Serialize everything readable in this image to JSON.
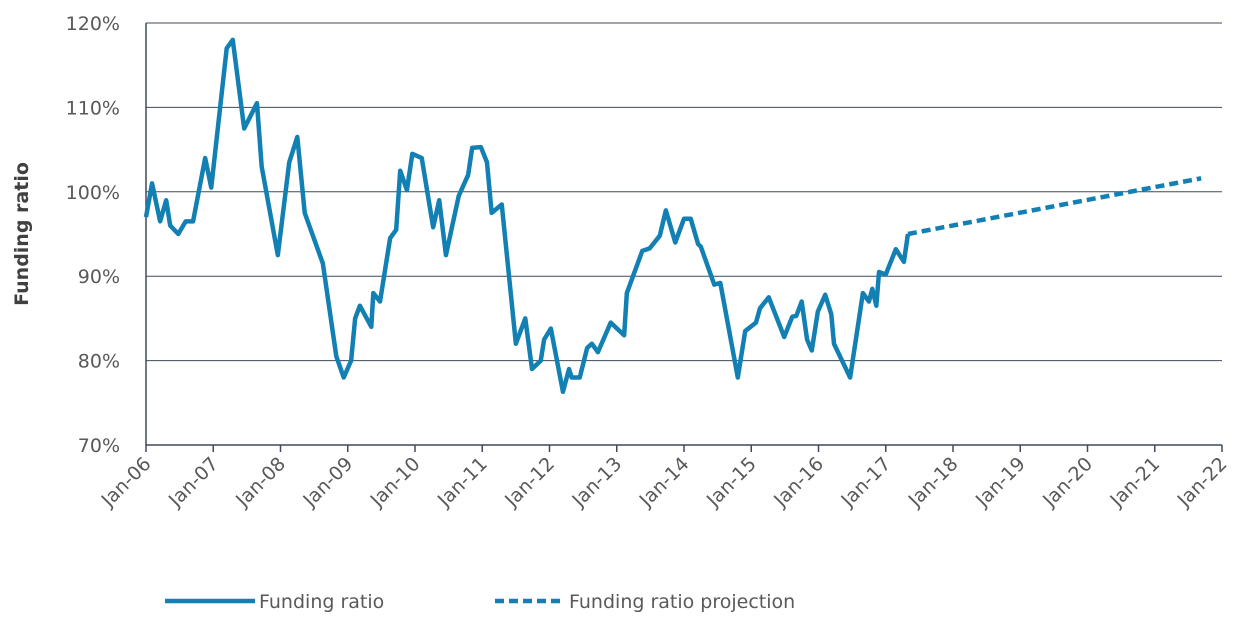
{
  "chart_data": {
    "type": "line",
    "y_label": "Funding ratio",
    "xlim": [
      2006,
      2022
    ],
    "ylim": [
      70,
      120
    ],
    "xticks": [
      {
        "value": 2006,
        "label": "Jan-06"
      },
      {
        "value": 2007,
        "label": "Jan-07"
      },
      {
        "value": 2008,
        "label": "Jan-08"
      },
      {
        "value": 2009,
        "label": "Jan-09"
      },
      {
        "value": 2010,
        "label": "Jan-10"
      },
      {
        "value": 2011,
        "label": "Jan-11"
      },
      {
        "value": 2012,
        "label": "Jan-12"
      },
      {
        "value": 2013,
        "label": "Jan-13"
      },
      {
        "value": 2014,
        "label": "Jan-14"
      },
      {
        "value": 2015,
        "label": "Jan-15"
      },
      {
        "value": 2016,
        "label": "Jan-16"
      },
      {
        "value": 2017,
        "label": "Jan-17"
      },
      {
        "value": 2018,
        "label": "Jan-18"
      },
      {
        "value": 2019,
        "label": "Jan-19"
      },
      {
        "value": 2020,
        "label": "Jan-20"
      },
      {
        "value": 2021,
        "label": "Jan-21"
      },
      {
        "value": 2022,
        "label": "Jan-22"
      }
    ],
    "yticks": [
      {
        "value": 70,
        "label": "70%"
      },
      {
        "value": 80,
        "label": "80%"
      },
      {
        "value": 90,
        "label": "90%"
      },
      {
        "value": 100,
        "label": "100%"
      },
      {
        "value": 110,
        "label": "110%"
      },
      {
        "value": 120,
        "label": "120%"
      }
    ],
    "grid": true,
    "legend": "bottom",
    "series": [
      {
        "name": "Funding ratio",
        "color": "#1380b4",
        "dashed": false,
        "x": [
          2006.0,
          2006.09,
          2006.21,
          2006.3,
          2006.36,
          2006.48,
          2006.59,
          2006.7,
          2006.88,
          2006.97,
          2007.2,
          2007.29,
          2007.46,
          2007.65,
          2007.72,
          2007.96,
          2008.13,
          2008.25,
          2008.36,
          2008.63,
          2008.83,
          2008.94,
          2009.05,
          2009.11,
          2009.18,
          2009.35,
          2009.38,
          2009.48,
          2009.63,
          2009.72,
          2009.78,
          2009.88,
          2009.96,
          2010.1,
          2010.27,
          2010.36,
          2010.46,
          2010.65,
          2010.79,
          2010.85,
          2010.98,
          2011.07,
          2011.14,
          2011.29,
          2011.5,
          2011.64,
          2011.74,
          2011.87,
          2011.92,
          2012.02,
          2012.2,
          2012.29,
          2012.33,
          2012.45,
          2012.56,
          2012.63,
          2012.72,
          2012.91,
          2013.11,
          2013.15,
          2013.38,
          2013.49,
          2013.64,
          2013.73,
          2013.87,
          2014.0,
          2014.1,
          2014.21,
          2014.25,
          2014.45,
          2014.54,
          2014.8,
          2014.91,
          2015.07,
          2015.13,
          2015.26,
          2015.49,
          2015.61,
          2015.67,
          2015.75,
          2015.83,
          2015.9,
          2015.99,
          2016.1,
          2016.19,
          2016.23,
          2016.47,
          2016.66,
          2016.75,
          2016.8,
          2016.86,
          2016.9,
          2017.0,
          2017.15,
          2017.27,
          2017.33
        ],
        "values": [
          97,
          101,
          96.5,
          99,
          96,
          95,
          96.5,
          96.5,
          104,
          100.5,
          117,
          118,
          107.5,
          110.5,
          103,
          92.5,
          103.5,
          106.5,
          97.5,
          91.5,
          80.5,
          78,
          80,
          85,
          86.5,
          84,
          88,
          87,
          94.5,
          95.5,
          102.5,
          100.2,
          104.5,
          104,
          95.8,
          99,
          92.5,
          99.5,
          102,
          105.2,
          105.3,
          103.5,
          97.5,
          98.5,
          82,
          85,
          79,
          80,
          82.5,
          83.8,
          76.3,
          79,
          78,
          78,
          81.5,
          82,
          81,
          84.5,
          83,
          88,
          93,
          93.3,
          94.8,
          97.8,
          94,
          96.8,
          96.8,
          93.8,
          93.5,
          89,
          89.2,
          78,
          83.5,
          84.5,
          86.2,
          87.5,
          82.8,
          85.2,
          85.3,
          87,
          82.5,
          81.2,
          85.8,
          87.8,
          85.5,
          82,
          78,
          88,
          87,
          88.5,
          86.5,
          90.5,
          90.2,
          93.2,
          91.7,
          95
        ]
      },
      {
        "name": "Funding ratio projection",
        "color": "#1380b4",
        "dashed": true,
        "x": [
          2017.33,
          2021.69
        ],
        "values": [
          95,
          101.6
        ]
      }
    ]
  }
}
